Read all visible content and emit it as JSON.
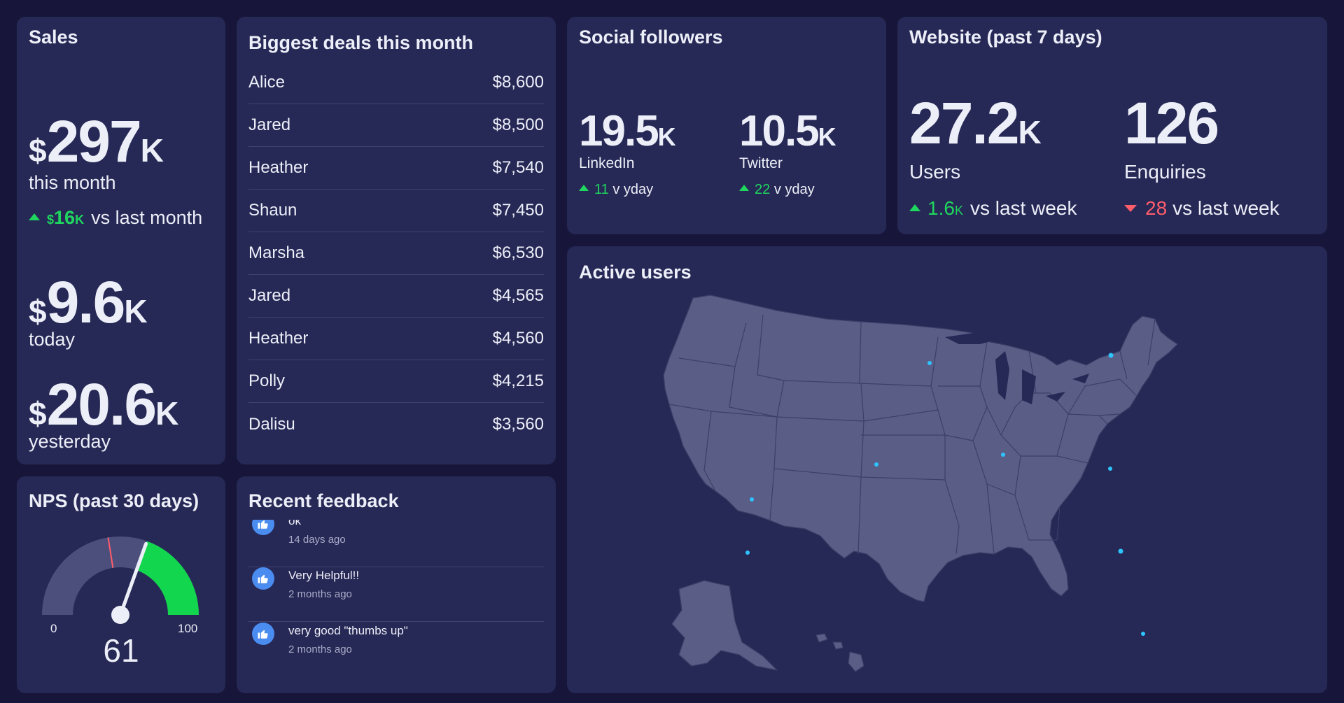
{
  "sales": {
    "title": "Sales",
    "month": {
      "currency": "$",
      "value": "297",
      "suffix": "K",
      "label": "this month"
    },
    "delta": {
      "currency": "$",
      "value": "16",
      "suffix": "K",
      "text": "vs last month"
    },
    "today": {
      "currency": "$",
      "value": "9.6",
      "suffix": "K",
      "label": "today"
    },
    "yesterday": {
      "currency": "$",
      "value": "20.6",
      "suffix": "K",
      "label": "yesterday"
    }
  },
  "deals": {
    "title": "Biggest deals this month",
    "rows": [
      {
        "name": "Alice",
        "amount": "$8,600"
      },
      {
        "name": "Jared",
        "amount": "$8,500"
      },
      {
        "name": "Heather",
        "amount": "$7,540"
      },
      {
        "name": "Shaun",
        "amount": "$7,450"
      },
      {
        "name": "Marsha",
        "amount": "$6,530"
      },
      {
        "name": "Jared",
        "amount": "$4,565"
      },
      {
        "name": "Heather",
        "amount": "$4,560"
      },
      {
        "name": "Polly",
        "amount": "$4,215"
      },
      {
        "name": "Dalisu",
        "amount": "$3,560"
      }
    ]
  },
  "social": {
    "title": "Social followers",
    "linkedin": {
      "value": "19.5",
      "suffix": "K",
      "label": "LinkedIn",
      "delta": "11",
      "delta_text": "v yday"
    },
    "twitter": {
      "value": "10.5",
      "suffix": "K",
      "label": "Twitter",
      "delta": "22",
      "delta_text": "v yday"
    }
  },
  "website": {
    "title": "Website (past 7 days)",
    "users": {
      "value": "27.2",
      "suffix": "K",
      "label": "Users",
      "delta": "1.6",
      "delta_suffix": "K",
      "delta_text": "vs last week"
    },
    "enquiries": {
      "value": "126",
      "label": "Enquiries",
      "delta": "28",
      "delta_text": "vs last week"
    }
  },
  "nps": {
    "title": "NPS (past 30 days)",
    "min_label": "0",
    "max_label": "100",
    "value": "61",
    "score": 61,
    "target": 45
  },
  "feedback": {
    "title": "Recent feedback",
    "items": [
      {
        "text": "ok",
        "time": "14 days ago"
      },
      {
        "text": "Very Helpful!!",
        "time": "2 months ago"
      },
      {
        "text": "very good \"thumbs up\"",
        "time": "2 months ago"
      }
    ]
  },
  "map": {
    "title": "Active users"
  },
  "colors": {
    "background": "#17163a",
    "panel": "#262855",
    "positive": "#1fd65e",
    "negative": "#ff5d6c",
    "map_fill": "#5a5d85",
    "dot": "#2ec4ff"
  }
}
